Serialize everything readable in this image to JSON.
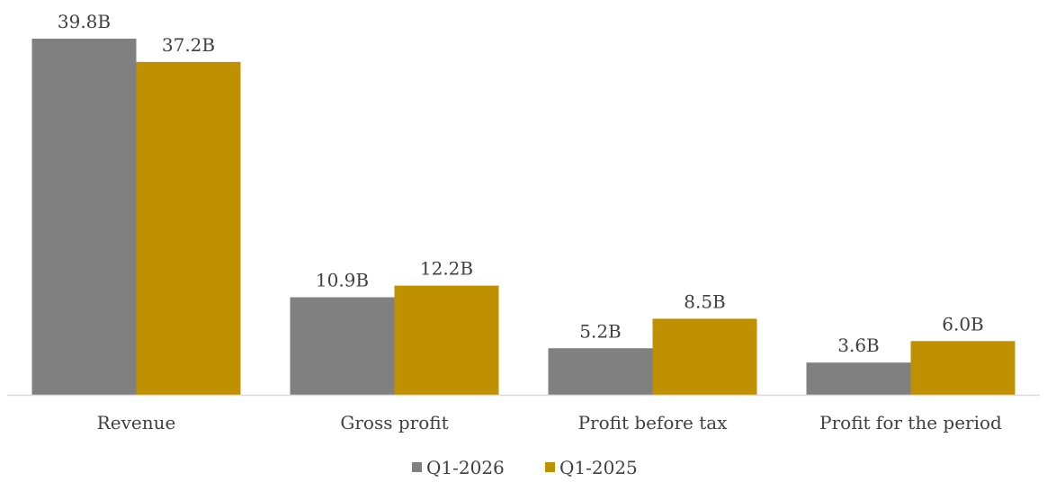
{
  "chart_data": {
    "type": "bar",
    "categories": [
      "Revenue",
      "Gross profit",
      "Profit before tax",
      "Profit for the period"
    ],
    "series": [
      {
        "name": "Q1-2026",
        "color": "#808080",
        "values": [
          39.8,
          10.9,
          5.2,
          3.6
        ],
        "labels": [
          "39.8B",
          "10.9B",
          "5.2B",
          "3.6B"
        ]
      },
      {
        "name": "Q1-2025",
        "color": "#BF9000",
        "values": [
          37.2,
          12.2,
          8.5,
          6.0
        ],
        "labels": [
          "37.2B",
          "12.2B",
          "8.5B",
          "6.0B"
        ]
      }
    ],
    "title": "",
    "xlabel": "",
    "ylabel": "",
    "ylim": [
      0,
      39.8
    ],
    "grid": false,
    "legend": "bottom",
    "axis_color": "#D9D9D9"
  }
}
